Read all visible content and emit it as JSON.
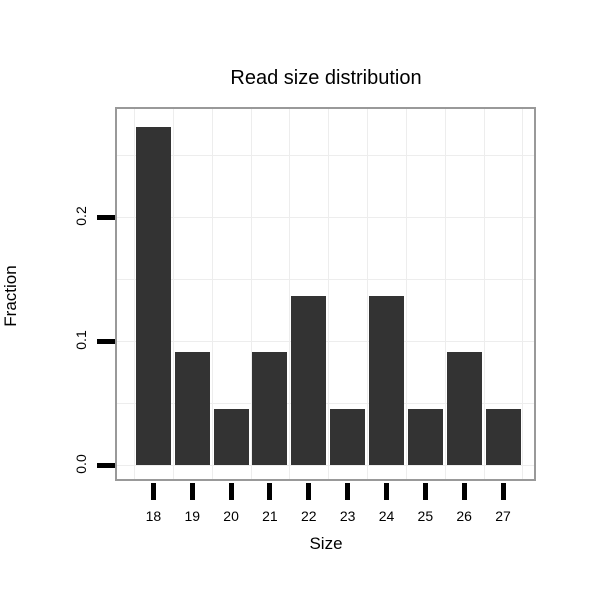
{
  "chart_data": {
    "type": "bar",
    "title": "Read size distribution",
    "xlabel": "Size",
    "ylabel": "Fraction",
    "categories": [
      "18",
      "19",
      "20",
      "21",
      "22",
      "23",
      "24",
      "25",
      "26",
      "27"
    ],
    "values": [
      0.2727,
      0.0909,
      0.0455,
      0.0909,
      0.1364,
      0.0455,
      0.1364,
      0.0455,
      0.0909,
      0.0455
    ],
    "yticks": [
      0.0,
      0.1,
      0.2
    ],
    "ytick_labels": [
      "0.0",
      "0.1",
      "0.2"
    ],
    "ylim": [
      -0.0137,
      0.2879
    ],
    "gridlines_y": [
      0.0,
      0.05,
      0.1,
      0.15,
      0.2,
      0.25
    ],
    "grid": "on",
    "legend_position": "none",
    "colors": {
      "bar_fill": "#333333",
      "gridline": "#ededed",
      "panel_border": "#999999",
      "panel_background": "#ffffff",
      "tick": "#000000",
      "text": "#000000"
    }
  }
}
